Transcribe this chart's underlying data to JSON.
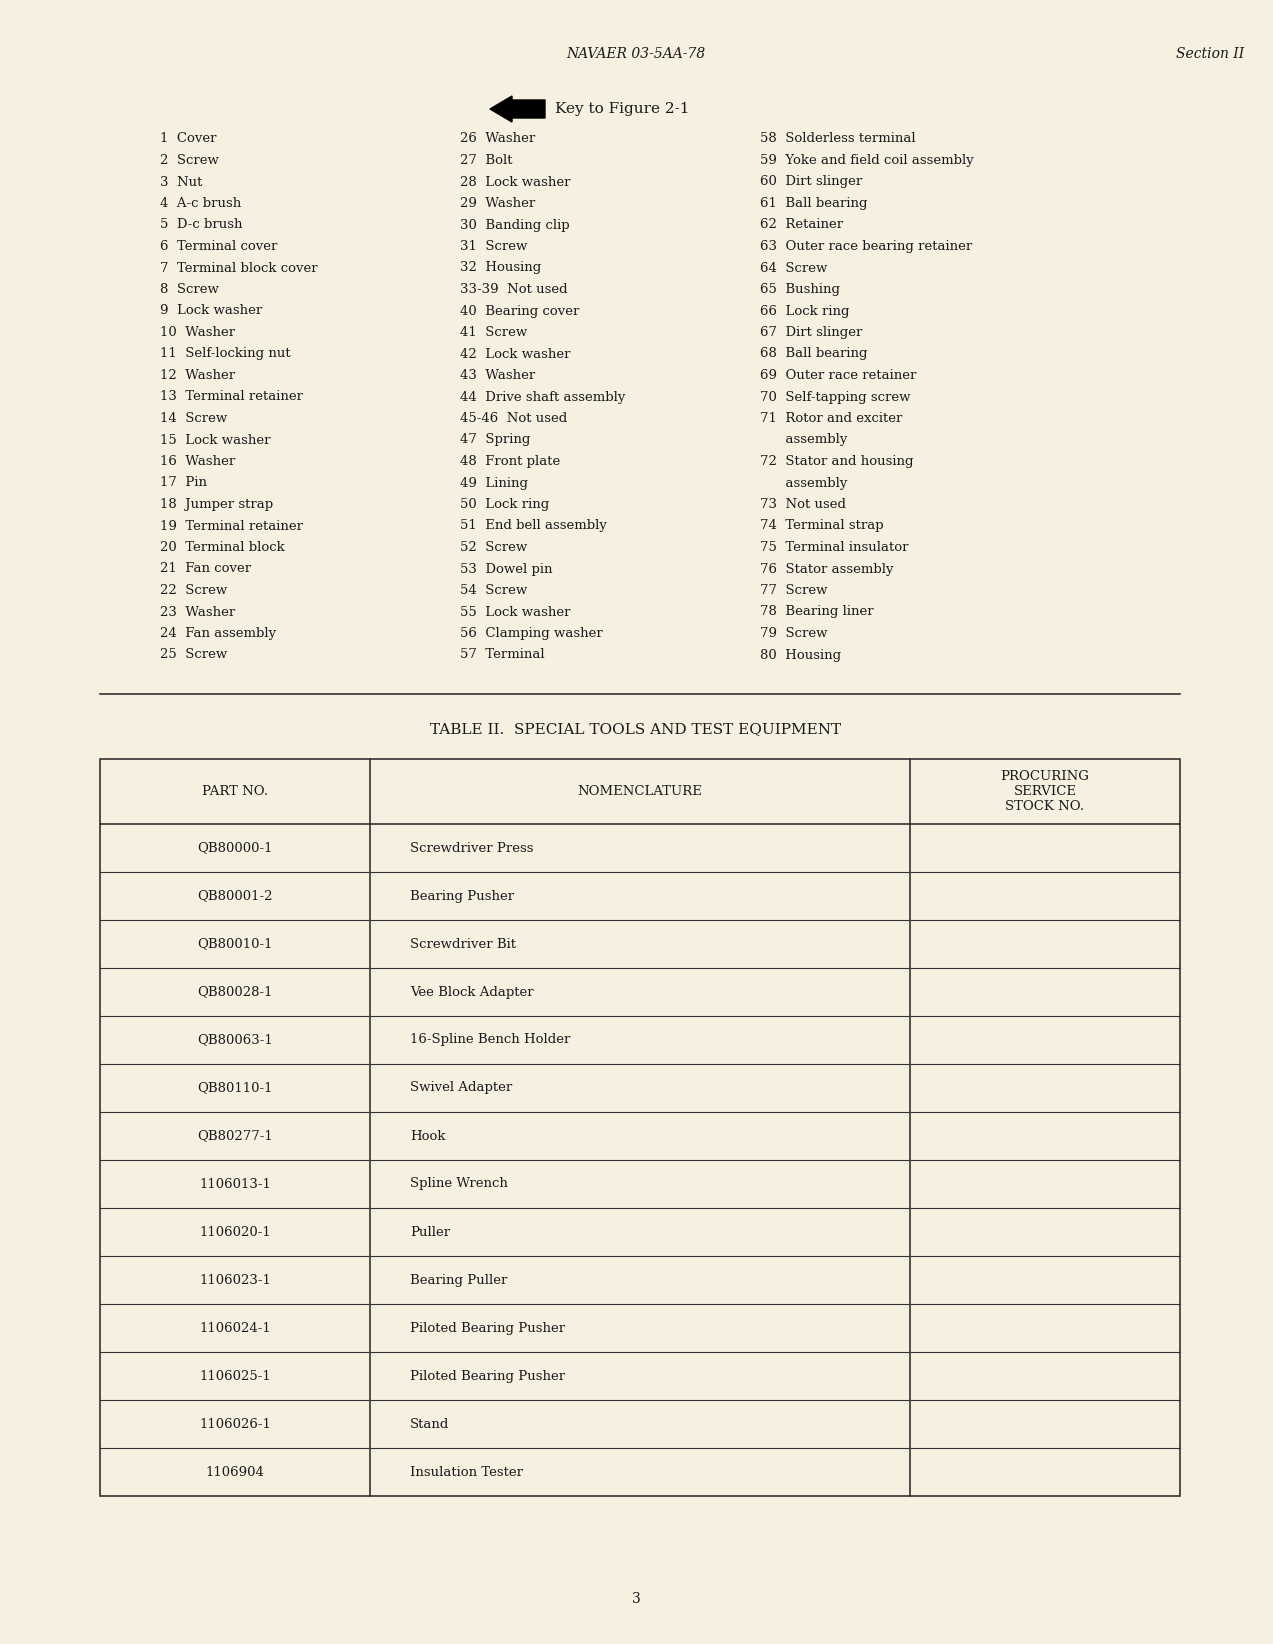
{
  "bg_color": "#f5f0e0",
  "header_left": "NAVAER 03-5AA-78",
  "header_right": "Section II",
  "arrow_label": "Key to Figure 2-1",
  "col1_items": [
    "1  Cover",
    "2  Screw",
    "3  Nut",
    "4  A-c brush",
    "5  D-c brush",
    "6  Terminal cover",
    "7  Terminal block cover",
    "8  Screw",
    "9  Lock washer",
    "10  Washer",
    "11  Self-locking nut",
    "12  Washer",
    "13  Terminal retainer",
    "14  Screw",
    "15  Lock washer",
    "16  Washer",
    "17  Pin",
    "18  Jumper strap",
    "19  Terminal retainer",
    "20  Terminal block",
    "21  Fan cover",
    "22  Screw",
    "23  Washer",
    "24  Fan assembly",
    "25  Screw"
  ],
  "col2_items": [
    "26  Washer",
    "27  Bolt",
    "28  Lock washer",
    "29  Washer",
    "30  Banding clip",
    "31  Screw",
    "32  Housing",
    "33-39  Not used",
    "40  Bearing cover",
    "41  Screw",
    "42  Lock washer",
    "43  Washer",
    "44  Drive shaft assembly",
    "45-46  Not used",
    "47  Spring",
    "48  Front plate",
    "49  Lining",
    "50  Lock ring",
    "51  End bell assembly",
    "52  Screw",
    "53  Dowel pin",
    "54  Screw",
    "55  Lock washer",
    "56  Clamping washer",
    "57  Terminal"
  ],
  "col3_items": [
    "58  Solderless terminal",
    "59  Yoke and field coil assembly",
    "60  Dirt slinger",
    "61  Ball bearing",
    "62  Retainer",
    "63  Outer race bearing retainer",
    "64  Screw",
    "65  Bushing",
    "66  Lock ring",
    "67  Dirt slinger",
    "68  Ball bearing",
    "69  Outer race retainer",
    "70  Self-tapping screw",
    "71  Rotor and exciter\n      assembly",
    "72  Stator and housing\n      assembly",
    "73  Not used",
    "74  Terminal strap",
    "75  Terminal insulator",
    "76  Stator assembly",
    "77  Screw",
    "78  Bearing liner",
    "79  Screw",
    "80  Housing",
    "",
    ""
  ],
  "table_title": "TABLE II.  SPECIAL TOOLS AND TEST EQUIPMENT",
  "table_headers": [
    "PART NO.",
    "NOMENCLATURE",
    "PROCURING\nSERVICE\nSTOCK NO."
  ],
  "table_rows": [
    [
      "QB80000-1",
      "Screwdriver Press",
      ""
    ],
    [
      "QB80001-2",
      "Bearing Pusher",
      ""
    ],
    [
      "QB80010-1",
      "Screwdriver Bit",
      ""
    ],
    [
      "QB80028-1",
      "Vee Block Adapter",
      ""
    ],
    [
      "QB80063-1",
      "16-Spline Bench Holder",
      ""
    ],
    [
      "QB80110-1",
      "Swivel Adapter",
      ""
    ],
    [
      "QB80277-1",
      "Hook",
      ""
    ],
    [
      "1106013-1",
      "Spline Wrench",
      ""
    ],
    [
      "1106020-1",
      "Puller",
      ""
    ],
    [
      "1106023-1",
      "Bearing Puller",
      ""
    ],
    [
      "1106024-1",
      "Piloted Bearing Pusher",
      ""
    ],
    [
      "1106025-1",
      "Piloted Bearing Pusher",
      ""
    ],
    [
      "1106026-1",
      "Stand",
      ""
    ],
    [
      "1106904",
      "Insulation Tester",
      ""
    ]
  ],
  "page_number": "3",
  "text_color": "#1a1a1a",
  "font_family": "serif"
}
